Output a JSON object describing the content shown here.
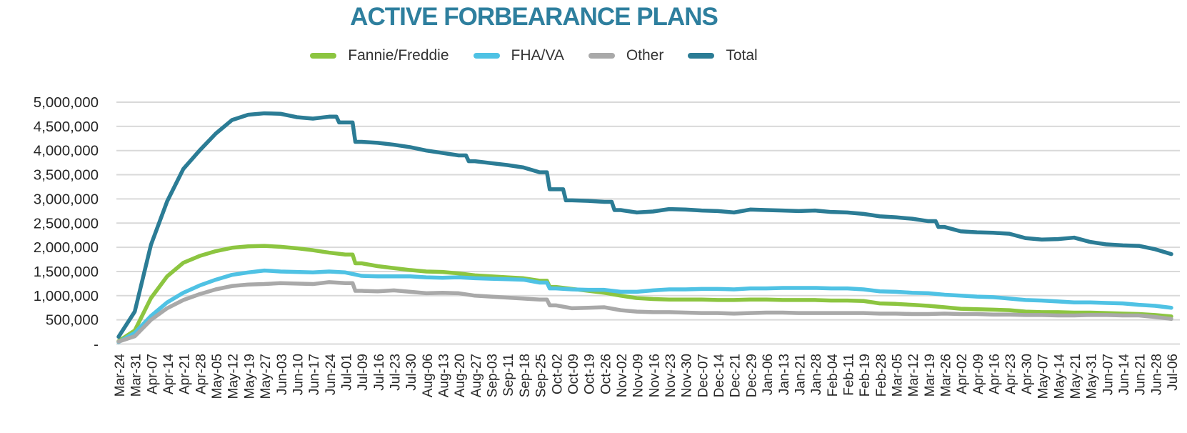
{
  "title": "ACTIVE FORBEARANCE PLANS",
  "colors": {
    "title": "#2e7f9e",
    "grid": "#d9d9d9",
    "axis_text": "#262626",
    "background": "#ffffff"
  },
  "chart_data": {
    "type": "line",
    "title": "ACTIVE FORBEARANCE PLANS",
    "xlabel": "",
    "ylabel": "",
    "ylim": [
      0,
      5000000
    ],
    "ytick_interval": 500000,
    "ytick_labels": [
      "-",
      "500,000",
      "1,000,000",
      "1,500,000",
      "2,000,000",
      "2,500,000",
      "3,000,000",
      "3,500,000",
      "4,000,000",
      "4,500,000",
      "5,000,000"
    ],
    "grid": true,
    "legend_position": "top",
    "x_label_rotation": -90,
    "categories": [
      "Mar-24",
      "Mar-31",
      "Apr-07",
      "Apr-14",
      "Apr-21",
      "Apr-28",
      "May-05",
      "May-12",
      "May-19",
      "May-27",
      "Jun-03",
      "Jun-10",
      "Jun-17",
      "Jun-24",
      "Jul-01",
      "Jul-09",
      "Jul-16",
      "Jul-23",
      "Jul-30",
      "Aug-06",
      "Aug-13",
      "Aug-20",
      "Aug-27",
      "Sep-03",
      "Sep-11",
      "Sep-18",
      "Sep-25",
      "Oct-02",
      "Oct-09",
      "Oct-19",
      "Oct-26",
      "Nov-02",
      "Nov-09",
      "Nov-16",
      "Nov-23",
      "Nov-30",
      "Dec-07",
      "Dec-14",
      "Dec-21",
      "Dec-29",
      "Jan-06",
      "Jan-13",
      "Jan-21",
      "Jan-28",
      "Feb-04",
      "Feb-11",
      "Feb-19",
      "Feb-28",
      "Mar-05",
      "Mar-12",
      "Mar-19",
      "Mar-26",
      "Apr-02",
      "Apr-09",
      "Apr-16",
      "Apr-23",
      "Apr-30",
      "May-07",
      "May-14",
      "May-21",
      "May-31",
      "Jun-07",
      "Jun-14",
      "Jun-21",
      "Jun-28",
      "Jul-06"
    ],
    "series": [
      {
        "name": "Fannie/Freddie",
        "color": "#8cc540",
        "values": [
          60000,
          280000,
          950000,
          1400000,
          1680000,
          1820000,
          1920000,
          1990000,
          2020000,
          2030000,
          2010000,
          1980000,
          1940000,
          1890000,
          1850000,
          1670000,
          1610000,
          1570000,
          1530000,
          1500000,
          1490000,
          1460000,
          1420000,
          1400000,
          1380000,
          1360000,
          1310000,
          1180000,
          1140000,
          1100000,
          1060000,
          1000000,
          950000,
          930000,
          920000,
          920000,
          920000,
          910000,
          910000,
          920000,
          920000,
          910000,
          910000,
          910000,
          900000,
          900000,
          890000,
          840000,
          830000,
          810000,
          790000,
          760000,
          730000,
          720000,
          710000,
          700000,
          670000,
          660000,
          660000,
          650000,
          650000,
          640000,
          630000,
          620000,
          600000,
          570000
        ]
      },
      {
        "name": "FHA/VA",
        "color": "#4fc2e4",
        "values": [
          40000,
          230000,
          580000,
          860000,
          1060000,
          1210000,
          1330000,
          1430000,
          1480000,
          1520000,
          1500000,
          1490000,
          1480000,
          1500000,
          1480000,
          1410000,
          1400000,
          1400000,
          1400000,
          1380000,
          1370000,
          1380000,
          1360000,
          1350000,
          1340000,
          1330000,
          1270000,
          1150000,
          1130000,
          1120000,
          1120000,
          1080000,
          1080000,
          1110000,
          1130000,
          1130000,
          1140000,
          1140000,
          1130000,
          1150000,
          1150000,
          1160000,
          1160000,
          1160000,
          1150000,
          1150000,
          1130000,
          1090000,
          1080000,
          1060000,
          1050000,
          1020000,
          1000000,
          980000,
          970000,
          940000,
          910000,
          900000,
          880000,
          860000,
          860000,
          850000,
          840000,
          810000,
          790000,
          750000
        ]
      },
      {
        "name": "Other",
        "color": "#a9a9a9",
        "values": [
          50000,
          160000,
          500000,
          740000,
          910000,
          1030000,
          1130000,
          1200000,
          1230000,
          1240000,
          1260000,
          1250000,
          1240000,
          1280000,
          1260000,
          1100000,
          1090000,
          1110000,
          1080000,
          1050000,
          1060000,
          1050000,
          1000000,
          980000,
          960000,
          940000,
          920000,
          800000,
          740000,
          750000,
          760000,
          700000,
          670000,
          660000,
          660000,
          650000,
          640000,
          640000,
          630000,
          640000,
          650000,
          650000,
          640000,
          640000,
          640000,
          640000,
          640000,
          630000,
          630000,
          620000,
          620000,
          630000,
          620000,
          620000,
          610000,
          610000,
          600000,
          600000,
          590000,
          590000,
          600000,
          600000,
          590000,
          590000,
          560000,
          520000
        ]
      },
      {
        "name": "Total",
        "color": "#2b7c95",
        "values": [
          150000,
          670000,
          2050000,
          2950000,
          3620000,
          4000000,
          4350000,
          4630000,
          4740000,
          4770000,
          4760000,
          4690000,
          4660000,
          4700000,
          4580000,
          4180000,
          4160000,
          4120000,
          4070000,
          4000000,
          3950000,
          3900000,
          3780000,
          3740000,
          3700000,
          3650000,
          3550000,
          3200000,
          2970000,
          2960000,
          2940000,
          2770000,
          2720000,
          2740000,
          2790000,
          2780000,
          2760000,
          2750000,
          2720000,
          2780000,
          2770000,
          2760000,
          2750000,
          2760000,
          2730000,
          2720000,
          2690000,
          2640000,
          2620000,
          2590000,
          2540000,
          2420000,
          2330000,
          2310000,
          2300000,
          2280000,
          2190000,
          2160000,
          2170000,
          2200000,
          2110000,
          2060000,
          2040000,
          2030000,
          1960000,
          1860000
        ]
      }
    ]
  }
}
